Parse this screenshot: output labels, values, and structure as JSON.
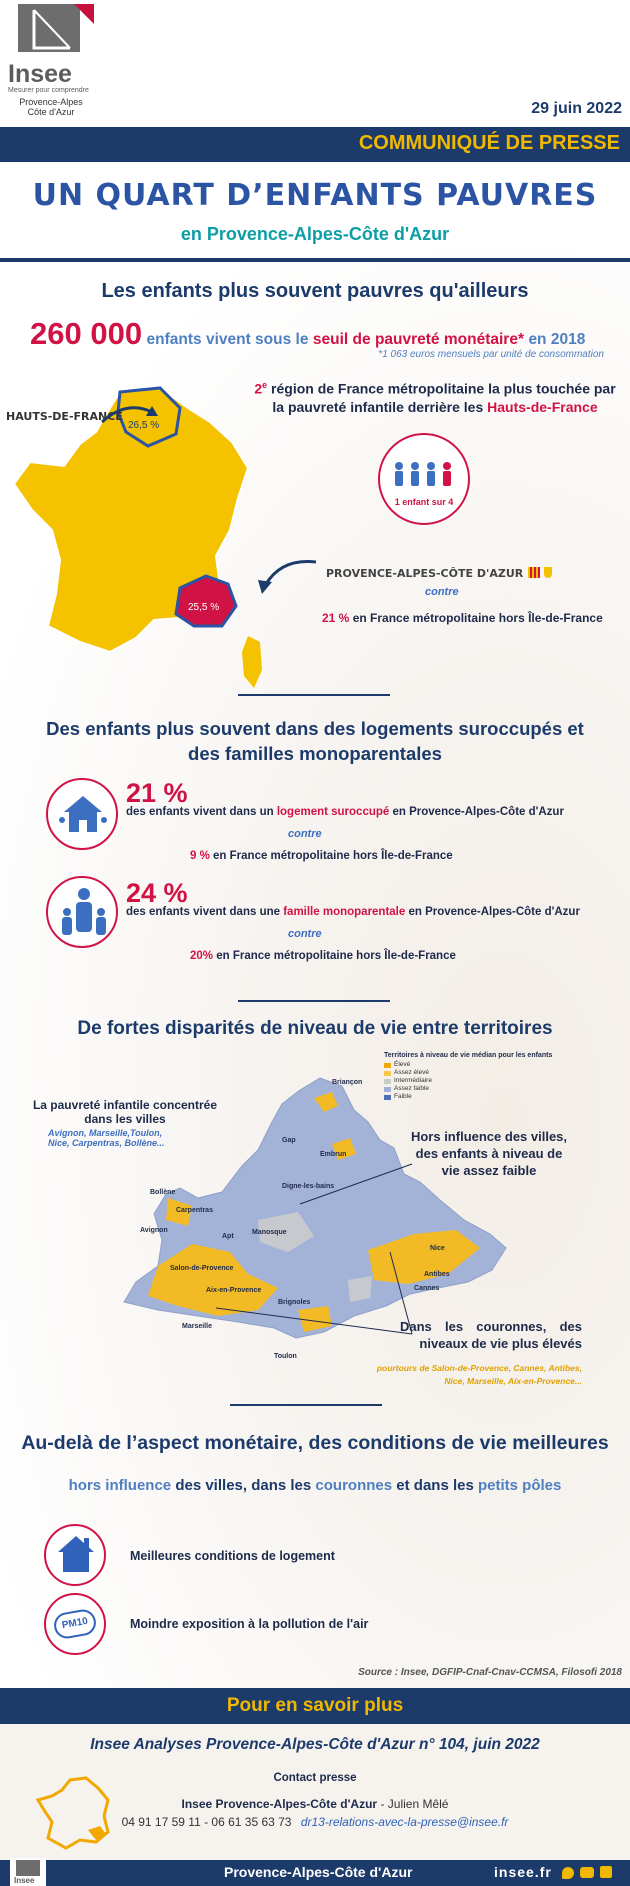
{
  "header": {
    "logo_word": "Insee",
    "logo_tagline": "Mesurer pour comprendre",
    "logo_region_1": "Provence-Alpes",
    "logo_region_2": "Côte d'Azur",
    "date": "29 juin 2022",
    "banner": "COMMUNIQUÉ DE PRESSE"
  },
  "title": {
    "main": "UN QUART D’ENFANTS PAUVRES",
    "sub": "en Provence-Alpes-Côte d'Azur"
  },
  "section1": {
    "heading": "Les enfants plus souvent pauvres qu'ailleurs",
    "big_number": "260 000",
    "line_a": "enfants vivent sous le",
    "line_b": "seuil de pauvreté monétaire*",
    "line_c": "en 2018",
    "footnote": "*1 063 euros mensuels par unité de consommation",
    "rank_sup": "2",
    "rank_sup_text": "e",
    "rank_text_1": "région de France métropolitaine la plus touchée par",
    "rank_text_2": "la pauvreté infantile derrière les",
    "rank_text_3": "Hauts-de-France",
    "label_hdf": "HAUTS-DE-FRANCE",
    "value_hdf": "26,5 %",
    "label_paca": "PROVENCE-ALPES-CÔTE D'AZUR",
    "value_paca": "25,5 %",
    "ratio": "1 enfant sur",
    "ratio_num": "4",
    "contre": "contre",
    "compare_value": "21 %",
    "compare_text": "en France métropolitaine hors Île-de-France"
  },
  "section2": {
    "heading_1": "Des enfants plus souvent dans des logements suroccupés et",
    "heading_2": "des familles monoparentales",
    "stat1_value": "21 %",
    "stat1_text_a": "des enfants vivent dans un",
    "stat1_text_b": "logement suroccupé",
    "stat1_text_c": "en Provence-Alpes-Côte d'Azur",
    "stat1_contre": "contre",
    "stat1_compare_value": "9 %",
    "stat1_compare_text": "en France métropolitaine hors Île-de-France",
    "stat2_value": "24 %",
    "stat2_text_a": "des enfants vivent dans une",
    "stat2_text_b": "famille monoparentale",
    "stat2_text_c": "en Provence-Alpes-Côte d'Azur",
    "stat2_contre": "contre",
    "stat2_compare_value": "20%",
    "stat2_compare_text": "en France métropolitaine hors Île-de-France"
  },
  "section3": {
    "heading": "De fortes disparités de niveau de vie entre territoires",
    "legend_title": "Territoires à niveau de vie médian pour les enfants",
    "legend": [
      {
        "label": "Élevé",
        "color": "#f1a800"
      },
      {
        "label": "Assez élevé",
        "color": "#f5c84a"
      },
      {
        "label": "Intermédiaire",
        "color": "#c9c9c9"
      },
      {
        "label": "Assez faible",
        "color": "#9fb1d6"
      },
      {
        "label": "Faible",
        "color": "#4f6fb5"
      }
    ],
    "note1_a": "La pauvreté infantile concentrée",
    "note1_b": "dans les villes",
    "note1_c": "Avignon, Marseille,Toulon,",
    "note1_d": "Nice, Carpentras, Bollène...",
    "note2_a": "Hors influence des villes,",
    "note2_b": "des enfants à niveau de",
    "note2_c": "vie assez faible",
    "note3_a": "Dans les couronnes, des",
    "note3_b": "niveaux de vie plus élevés",
    "note3_c": "pourtours de Salon-de-Provence, Cannes, Antibes,",
    "note3_d": "Nice, Marseille, Aix-en-Provence...",
    "cities": [
      "Briançon",
      "Gap",
      "Embrun",
      "Bollène",
      "Digne-les-bains",
      "Carpentras",
      "Avignon",
      "Apt",
      "Manosque",
      "Nice",
      "Salon-de-Provence",
      "Antibes",
      "Aix-en-Provence",
      "Cannes",
      "Brignoles",
      "Marseille",
      "Toulon"
    ]
  },
  "section4": {
    "heading": "Au-delà de l’aspect monétaire, des conditions de vie meilleures",
    "sub_a": "hors influence",
    "sub_b": "des villes, dans les",
    "sub_c": "couronnes",
    "sub_d": "et dans les",
    "sub_e": "petits pôles",
    "item1": "Meilleures conditions de logement",
    "item2": "Moindre exposition à la pollution de l'air",
    "pm10": "PM10"
  },
  "source": "Source : Insee, DGFIP-Cnaf-Cnav-CCMSA, Filosofi 2018",
  "footer": {
    "more": "Pour en savoir plus",
    "pub": "Insee Analyses Provence-Alpes-Côte d'Azur n° 104, juin 2022",
    "contact": "Contact presse",
    "contact_org": "Insee  Provence-Alpes-Côte d'Azur",
    "contact_name": "- Julien Mêlé",
    "phones": "04 91 17 59 11 - 06 61 35 63 73",
    "email": "dr13-relations-avec-la-presse@insee.fr",
    "bar_region": "Provence-Alpes-Côte d'Azur",
    "site": "insee.fr",
    "small_logo": "Insee"
  }
}
